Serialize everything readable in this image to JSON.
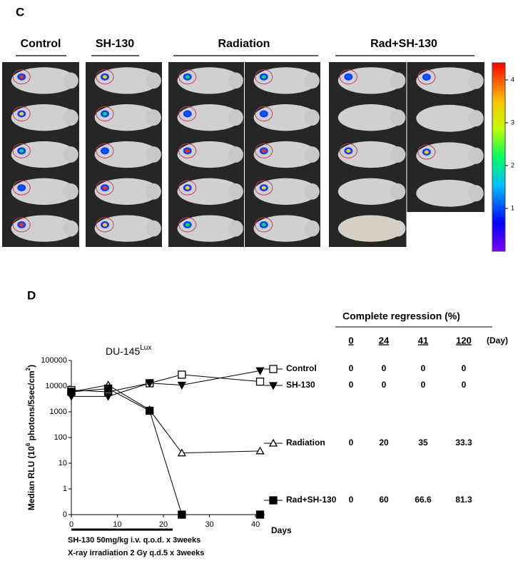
{
  "panel_c": {
    "label": "C",
    "groups": [
      "Control",
      "SH-130",
      "Radiation",
      "Rad+SH-130"
    ],
    "colorbar_ticks": [
      1,
      2,
      3,
      4
    ],
    "colorbar_lim": [
      0,
      4.4
    ]
  },
  "panel_d_label": "D",
  "chart_data": {
    "type": "line",
    "title": "DU-145",
    "title_superscript": "Lux",
    "ylabel": [
      "Median RLU (10",
      "6",
      " photons/5sec/cm",
      "2",
      ")"
    ],
    "xlabel": "Days",
    "x": [
      0,
      8,
      17,
      24,
      41
    ],
    "xlim": [
      0,
      42
    ],
    "xticks": [
      0,
      10,
      20,
      30,
      40
    ],
    "ylim": [
      0,
      100000
    ],
    "yticks": [
      0,
      1,
      10,
      100,
      1000,
      10000,
      100000
    ],
    "log": true,
    "series": [
      {
        "name": "Control",
        "color": "#000",
        "marker": "square-open",
        "values": [
          7000,
          6000,
          13000,
          28000,
          15000
        ]
      },
      {
        "name": "SH-130",
        "color": "#000",
        "marker": "triangle-down-filled",
        "values": [
          4000,
          4000,
          13000,
          11000,
          40000
        ]
      },
      {
        "name": "Radiation",
        "color": "#000",
        "marker": "triangle-up-open",
        "values": [
          6000,
          11000,
          1200,
          25,
          30
        ]
      },
      {
        "name": "Rad+SH-130",
        "color": "#000",
        "marker": "square-filled",
        "values": [
          6000,
          8000,
          1100,
          0,
          0
        ]
      }
    ],
    "treatment": {
      "xrange": [
        0,
        22
      ],
      "notes": [
        "SH-130 50mg/kg i.v. q.o.d. x 3weeks",
        "X-ray irradiation 2 Gy q.d.5 x 3weeks"
      ]
    }
  },
  "regression_table": {
    "title": "Complete regression (%)",
    "days": [
      "0",
      "24",
      "41",
      "120"
    ],
    "day_unit": "(Day)",
    "rows": [
      [
        0,
        0,
        0,
        0
      ],
      [
        0,
        0,
        0,
        0
      ],
      [
        0,
        20,
        35,
        33.3
      ],
      [
        0,
        60,
        66.6,
        81.3
      ]
    ]
  }
}
